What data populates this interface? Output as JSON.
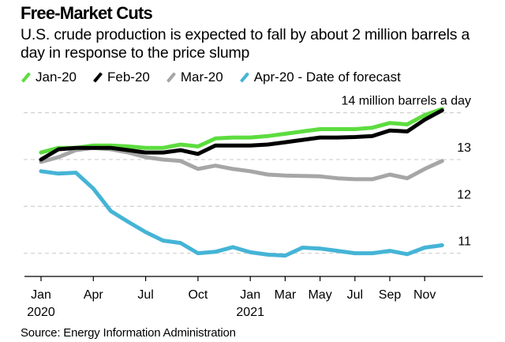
{
  "title": "Free-Market Cuts",
  "subtitle": "U.S. crude production is expected to fall by about 2 million barrels a day in response to the price slump",
  "source": "Source: Energy Information Administration",
  "legend": [
    {
      "label": "Jan-20",
      "color": "#5ddc3f"
    },
    {
      "label": "Feb-20",
      "color": "#000000"
    },
    {
      "label": "Mar-20",
      "color": "#a6a6a6"
    },
    {
      "label": "Apr-20 - Date of forecast",
      "color": "#45b4d6"
    }
  ],
  "chart_data": {
    "type": "line",
    "title": "Free-Market Cuts",
    "subtitle": "U.S. crude production is expected to fall by about 2 million barrels a day in response to the price slump",
    "xlabel": "",
    "ylabel": "million barrels a day",
    "ylim": [
      10.5,
      14.1
    ],
    "grid": true,
    "legend_position": "top-left",
    "x": [
      "2020-01",
      "2020-02",
      "2020-03",
      "2020-04",
      "2020-05",
      "2020-06",
      "2020-07",
      "2020-08",
      "2020-09",
      "2020-10",
      "2020-11",
      "2020-12",
      "2021-01",
      "2021-02",
      "2021-03",
      "2021-04",
      "2021-05",
      "2021-06",
      "2021-07",
      "2021-08",
      "2021-09",
      "2021-10",
      "2021-11",
      "2021-12"
    ],
    "x_ticks": [
      {
        "index": 0,
        "label": "Jan",
        "sublabel": "2020"
      },
      {
        "index": 3,
        "label": "Apr",
        "sublabel": ""
      },
      {
        "index": 6,
        "label": "Jul",
        "sublabel": ""
      },
      {
        "index": 9,
        "label": "Oct",
        "sublabel": ""
      },
      {
        "index": 12,
        "label": "Jan",
        "sublabel": "2021"
      },
      {
        "index": 14,
        "label": "Mar",
        "sublabel": ""
      },
      {
        "index": 16,
        "label": "May",
        "sublabel": ""
      },
      {
        "index": 18,
        "label": "Jul",
        "sublabel": ""
      },
      {
        "index": 20,
        "label": "Sep",
        "sublabel": ""
      },
      {
        "index": 22,
        "label": "Nov",
        "sublabel": ""
      }
    ],
    "y_ticks": [
      {
        "value": 14,
        "label": "14 million barrels a day"
      },
      {
        "value": 13,
        "label": "13"
      },
      {
        "value": 12,
        "label": "12"
      },
      {
        "value": 11,
        "label": "11"
      }
    ],
    "series": [
      {
        "name": "Jan-20",
        "color": "#5ddc3f",
        "values": [
          13.15,
          13.25,
          13.25,
          13.3,
          13.3,
          13.28,
          13.25,
          13.25,
          13.32,
          13.28,
          13.45,
          13.47,
          13.47,
          13.5,
          13.55,
          13.6,
          13.65,
          13.65,
          13.65,
          13.68,
          13.78,
          13.75,
          13.95,
          14.08
        ]
      },
      {
        "name": "Feb-20",
        "color": "#000000",
        "values": [
          13.0,
          13.22,
          13.25,
          13.25,
          13.25,
          13.2,
          13.15,
          13.15,
          13.2,
          13.12,
          13.3,
          13.3,
          13.3,
          13.32,
          13.37,
          13.42,
          13.47,
          13.47,
          13.48,
          13.5,
          13.62,
          13.6,
          13.85,
          14.05
        ]
      },
      {
        "name": "Mar-20",
        "color": "#a6a6a6",
        "values": [
          12.95,
          13.05,
          13.2,
          13.25,
          13.22,
          13.15,
          13.05,
          13.0,
          12.97,
          12.8,
          12.87,
          12.8,
          12.75,
          12.68,
          12.66,
          12.65,
          12.64,
          12.6,
          12.58,
          12.58,
          12.68,
          12.6,
          12.8,
          12.97
        ]
      },
      {
        "name": "Apr-20 - Date of forecast",
        "color": "#45b4d6",
        "values": [
          12.75,
          12.7,
          12.72,
          12.38,
          11.9,
          11.67,
          11.45,
          11.27,
          11.22,
          11.0,
          11.03,
          11.13,
          11.02,
          10.97,
          10.95,
          11.12,
          11.1,
          11.05,
          11.0,
          11.0,
          11.05,
          10.98,
          11.12,
          11.17
        ]
      }
    ]
  }
}
